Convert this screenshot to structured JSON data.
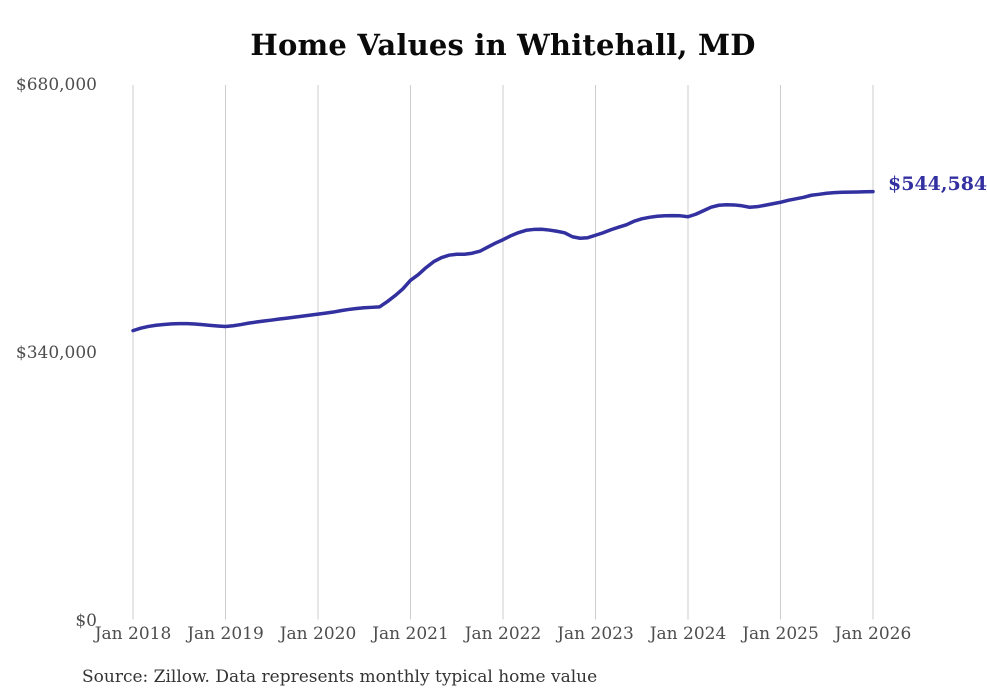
{
  "chart": {
    "title": "Home Values in Whitehall, MD",
    "end_label": "$544,584",
    "source_note": "Source: Zillow. Data represents monthly typical home value"
  },
  "colors": {
    "line": "#3330a0",
    "end_label": "#3330a0",
    "gridline": "#cccccc",
    "axis_text": "#4d4d4d",
    "title_text": "#0a0a0a",
    "source_text": "#333333",
    "background": "#ffffff"
  },
  "chart_data": {
    "type": "line",
    "title": "Home Values in Whitehall, MD",
    "xlabel": "",
    "ylabel": "",
    "x_start": "2018-01",
    "x_end": "2026-01",
    "interval": "monthly",
    "x_tick_labels": [
      "Jan 2018",
      "Jan 2019",
      "Jan 2020",
      "Jan 2021",
      "Jan 2022",
      "Jan 2023",
      "Jan 2024",
      "Jan 2025",
      "Jan 2026"
    ],
    "y_ticks": [
      0,
      340000,
      680000
    ],
    "y_tick_labels": [
      "$0",
      "$340,000",
      "$680,000"
    ],
    "ylim": [
      0,
      680000
    ],
    "grid": "vertical-only",
    "legend": "none",
    "last_value": 544584,
    "series": [
      {
        "name": "Monthly typical home value",
        "values": [
          368100,
          371200,
          373400,
          374900,
          375900,
          376600,
          377000,
          377000,
          376500,
          375700,
          374800,
          374000,
          373300,
          374300,
          375800,
          377600,
          379000,
          380300,
          381500,
          382800,
          384000,
          385300,
          386500,
          387800,
          389000,
          390300,
          391700,
          393500,
          395000,
          396200,
          397100,
          397700,
          398300,
          405000,
          412500,
          421000,
          432000,
          439100,
          448000,
          455600,
          460700,
          463900,
          465100,
          465100,
          466400,
          468900,
          474000,
          479100,
          483500,
          488500,
          492500,
          495500,
          496600,
          496800,
          495800,
          494300,
          492300,
          487300,
          485400,
          486100,
          489200,
          492400,
          496200,
          499400,
          502500,
          507000,
          510100,
          512000,
          513300,
          513900,
          514200,
          513900,
          512700,
          515900,
          520300,
          524800,
          527300,
          527900,
          527700,
          526600,
          524800,
          525500,
          527300,
          529200,
          531100,
          533600,
          535500,
          537400,
          540000,
          541200,
          542500,
          543300,
          543800,
          544000,
          544200,
          544400,
          544584
        ]
      }
    ]
  }
}
